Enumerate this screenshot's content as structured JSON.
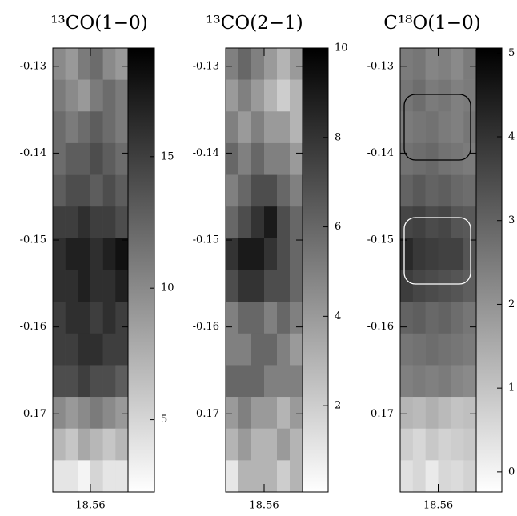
{
  "chart_data": [
    {
      "type": "heatmap",
      "title": "¹³CO(1−0)",
      "xlim": [
        18.5645,
        18.5555
      ],
      "xticks": [
        18.56
      ],
      "ylim": [
        -0.179,
        -0.1279
      ],
      "yticks": [
        -0.13,
        -0.14,
        -0.15,
        -0.16,
        -0.17
      ],
      "zlim": [
        2.25,
        19.13
      ],
      "zticks": [
        5,
        10,
        15
      ],
      "z": [
        [
          10,
          9,
          11,
          12,
          10,
          9
        ],
        [
          11,
          10,
          9,
          11,
          12,
          11
        ],
        [
          12,
          11,
          12,
          13,
          12,
          11
        ],
        [
          12,
          13,
          13,
          14,
          13,
          12
        ],
        [
          13,
          14,
          14,
          13,
          14,
          13
        ],
        [
          15,
          15,
          16,
          15,
          15,
          14
        ],
        [
          16,
          17,
          17,
          16,
          17,
          18
        ],
        [
          16,
          16,
          17,
          16,
          16,
          17
        ],
        [
          15,
          16,
          16,
          15,
          16,
          15
        ],
        [
          15,
          15,
          16,
          16,
          15,
          15
        ],
        [
          14,
          14,
          15,
          14,
          14,
          13
        ],
        [
          10,
          9,
          10,
          11,
          10,
          9
        ],
        [
          7,
          6,
          8,
          7,
          6,
          7
        ],
        [
          4,
          4,
          3,
          5,
          4,
          4
        ]
      ]
    },
    {
      "type": "heatmap",
      "title": "¹³CO(2−1)",
      "xlim": [
        18.5645,
        18.5555
      ],
      "xticks": [
        18.56
      ],
      "ylim": [
        -0.179,
        -0.1279
      ],
      "yticks": [
        -0.13,
        -0.14,
        -0.15,
        -0.16,
        -0.17
      ],
      "zlim": [
        0.07,
        10
      ],
      "zticks": [
        2,
        4,
        6,
        8,
        10
      ],
      "z": [
        [
          5,
          6,
          5,
          4,
          3,
          4
        ],
        [
          4,
          5,
          4,
          3,
          2,
          3
        ],
        [
          5,
          4,
          5,
          4,
          4,
          3
        ],
        [
          6,
          5,
          6,
          5,
          5,
          4
        ],
        [
          5,
          6,
          7,
          7,
          6,
          5
        ],
        [
          6,
          7,
          8,
          9,
          7,
          6
        ],
        [
          8,
          9,
          9,
          8,
          7,
          6
        ],
        [
          7,
          8,
          8,
          7,
          7,
          6
        ],
        [
          5,
          6,
          6,
          5,
          6,
          5
        ],
        [
          5,
          5,
          6,
          6,
          5,
          4
        ],
        [
          6,
          6,
          6,
          5,
          5,
          5
        ],
        [
          4,
          5,
          4,
          4,
          3,
          4
        ],
        [
          3,
          4,
          3,
          3,
          4,
          3
        ],
        [
          1,
          3,
          3,
          3,
          2,
          3
        ]
      ]
    },
    {
      "type": "heatmap",
      "title": "C¹⁸O(1−0)",
      "xlim": [
        18.5645,
        18.5555
      ],
      "xticks": [
        18.56
      ],
      "ylim": [
        -0.179,
        -0.1279
      ],
      "yticks": [
        -0.13,
        -0.14,
        -0.15,
        -0.16,
        -0.17
      ],
      "zlim": [
        -0.24,
        5.06
      ],
      "zticks": [
        0,
        1,
        2,
        3,
        4,
        5
      ],
      "z": [
        [
          2.5,
          2.6,
          2.3,
          2.4,
          2.2,
          2.5
        ],
        [
          2.6,
          2.8,
          2.5,
          2.6,
          2.4,
          2.5
        ],
        [
          2.5,
          2.6,
          2.7,
          2.5,
          2.4,
          2.6
        ],
        [
          2.7,
          2.8,
          2.9,
          2.7,
          2.6,
          2.5
        ],
        [
          3.0,
          3.2,
          3.0,
          3.1,
          2.9,
          2.8
        ],
        [
          3.6,
          3.7,
          3.5,
          3.6,
          3.3,
          3.2
        ],
        [
          4.2,
          3.9,
          3.8,
          3.7,
          3.7,
          3.3
        ],
        [
          3.8,
          3.6,
          3.5,
          3.4,
          3.3,
          3.1
        ],
        [
          3.0,
          3.1,
          2.9,
          3.0,
          2.8,
          2.6
        ],
        [
          2.6,
          2.7,
          2.8,
          2.7,
          2.6,
          2.5
        ],
        [
          2.4,
          2.5,
          2.4,
          2.5,
          2.3,
          2.2
        ],
        [
          1.3,
          1.2,
          1.4,
          1.2,
          1.0,
          1.1
        ],
        [
          0.8,
          0.6,
          0.9,
          0.7,
          0.8,
          0.9
        ],
        [
          0.4,
          0.6,
          0.2,
          0.6,
          0.5,
          0.7
        ]
      ]
    }
  ]
}
